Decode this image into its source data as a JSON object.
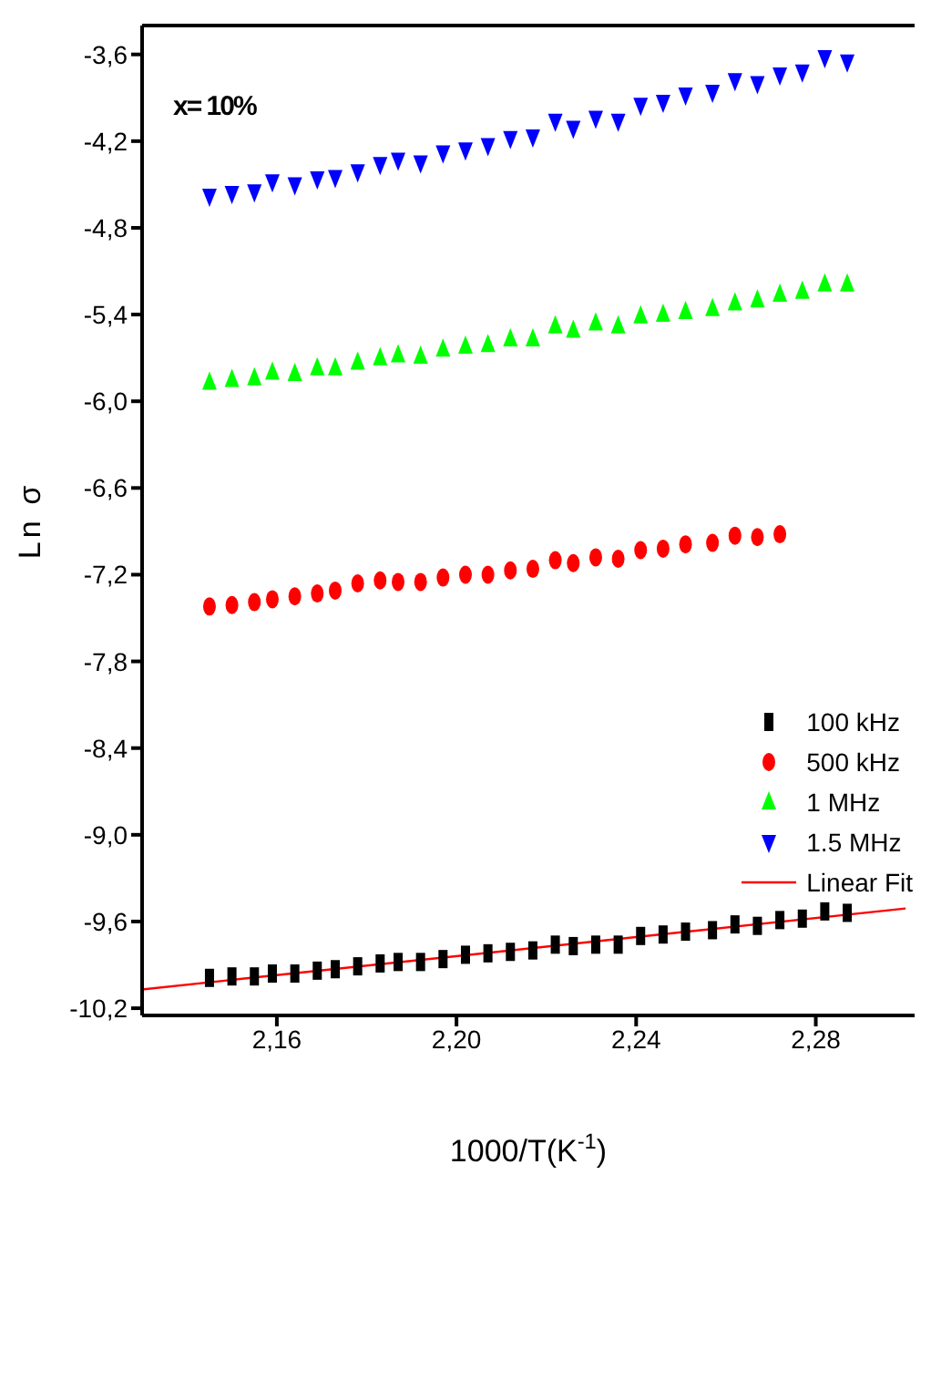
{
  "chart_data": {
    "type": "scatter",
    "xlabel": "1000/T(K$^{-1}$)",
    "ylabel": "Ln σ",
    "annotations": [
      "x= 10%"
    ],
    "x": [
      2.145,
      2.15,
      2.155,
      2.159,
      2.164,
      2.169,
      2.173,
      2.178,
      2.183,
      2.187,
      2.192,
      2.197,
      2.202,
      2.207,
      2.212,
      2.217,
      2.222,
      2.226,
      2.231,
      2.236,
      2.241,
      2.246,
      2.251,
      2.257,
      2.262,
      2.267,
      2.272,
      2.277,
      2.282,
      2.287
    ],
    "series": [
      {
        "name": "100 kHz",
        "marker": "square",
        "color": "#000000",
        "values": [
          -9.99,
          -9.98,
          -9.98,
          -9.96,
          -9.96,
          -9.94,
          -9.93,
          -9.91,
          -9.89,
          -9.88,
          -9.88,
          -9.86,
          -9.83,
          -9.82,
          -9.81,
          -9.8,
          -9.76,
          -9.77,
          -9.76,
          -9.76,
          -9.7,
          -9.69,
          -9.67,
          -9.66,
          -9.62,
          -9.63,
          -9.59,
          -9.58,
          -9.53,
          -9.54
        ]
      },
      {
        "name": "500 kHz",
        "marker": "circle",
        "color": "#ff0000",
        "x": [
          2.145,
          2.15,
          2.155,
          2.159,
          2.164,
          2.169,
          2.173,
          2.178,
          2.183,
          2.187,
          2.192,
          2.197,
          2.202,
          2.207,
          2.212,
          2.217,
          2.222,
          2.226,
          2.231,
          2.236,
          2.241,
          2.246,
          2.251,
          2.257,
          2.262,
          2.267,
          2.272
        ],
        "values": [
          -7.42,
          -7.41,
          -7.39,
          -7.37,
          -7.35,
          -7.33,
          -7.31,
          -7.26,
          -7.24,
          -7.25,
          -7.25,
          -7.22,
          -7.2,
          -7.2,
          -7.17,
          -7.16,
          -7.1,
          -7.12,
          -7.08,
          -7.09,
          -7.03,
          -7.02,
          -6.99,
          -6.98,
          -6.93,
          -6.94,
          -6.92
        ]
      },
      {
        "name": "1 MHz",
        "marker": "triangle",
        "color": "#00ff00",
        "values": [
          -5.87,
          -5.85,
          -5.84,
          -5.8,
          -5.81,
          -5.77,
          -5.77,
          -5.73,
          -5.7,
          -5.68,
          -5.69,
          -5.64,
          -5.62,
          -5.61,
          -5.57,
          -5.57,
          -5.48,
          -5.51,
          -5.46,
          -5.48,
          -5.41,
          -5.4,
          -5.38,
          -5.36,
          -5.32,
          -5.3,
          -5.26,
          -5.24,
          -5.19,
          -5.19
        ]
      },
      {
        "name": "1.5 MHz",
        "marker": "triangle-down",
        "color": "#0000ff",
        "values": [
          -4.58,
          -4.56,
          -4.55,
          -4.48,
          -4.5,
          -4.46,
          -4.45,
          -4.41,
          -4.36,
          -4.33,
          -4.35,
          -4.28,
          -4.26,
          -4.23,
          -4.18,
          -4.17,
          -4.06,
          -4.11,
          -4.04,
          -4.06,
          -3.95,
          -3.93,
          -3.88,
          -3.86,
          -3.78,
          -3.8,
          -3.74,
          -3.72,
          -3.62,
          -3.65
        ]
      },
      {
        "name": "Linear Fit",
        "type": "line",
        "marker": "none",
        "color": "#ff0000",
        "x": [
          2.13,
          2.3
        ],
        "values": [
          -10.07,
          -9.51
        ]
      }
    ],
    "xlim": [
      2.13,
      2.302
    ],
    "xticks": [
      {
        "value": 2.16,
        "label": "2,16"
      },
      {
        "value": 2.2,
        "label": "2,20"
      },
      {
        "value": 2.24,
        "label": "2,24"
      },
      {
        "value": 2.28,
        "label": "2,28"
      }
    ],
    "ylim": [
      -10.25,
      -3.4
    ],
    "yticks": [
      {
        "value": -3.6,
        "label": "-3,6"
      },
      {
        "value": -4.2,
        "label": "-4,2"
      },
      {
        "value": -4.8,
        "label": "-4,8"
      },
      {
        "value": -5.4,
        "label": "-5,4"
      },
      {
        "value": -6.0,
        "label": "-6,0"
      },
      {
        "value": -6.6,
        "label": "-6,6"
      },
      {
        "value": -7.2,
        "label": "-7,2"
      },
      {
        "value": -7.8,
        "label": "-7,8"
      },
      {
        "value": -8.4,
        "label": "-8,4"
      },
      {
        "value": -9.0,
        "label": "-9,0"
      },
      {
        "value": -9.6,
        "label": "-9,6"
      },
      {
        "value": -10.2,
        "label": "-10,2"
      }
    ],
    "legend": "right",
    "grid": false
  }
}
